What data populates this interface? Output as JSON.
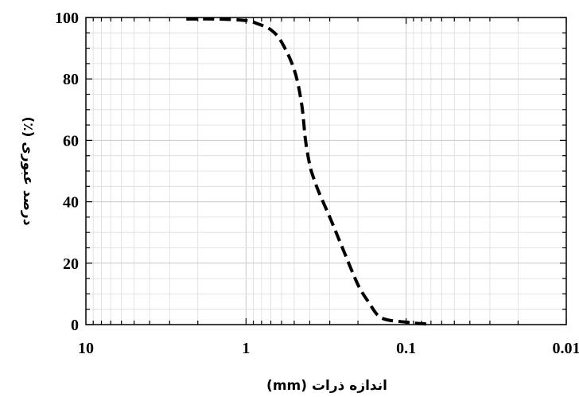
{
  "chart_data": {
    "type": "line",
    "xlabel": "اندازه ذرات (mm)",
    "ylabel": "درصد عبوری (٪)",
    "x_scale": "log",
    "x_reversed": true,
    "xlim": [
      10,
      0.01
    ],
    "ylim": [
      0,
      100
    ],
    "x_ticks": [
      10,
      1,
      0.1,
      0.01
    ],
    "x_tick_labels": [
      "10",
      "1",
      "0.1",
      "0.01"
    ],
    "y_ticks": [
      0,
      20,
      40,
      60,
      80,
      100
    ],
    "y_tick_labels": [
      "0",
      "20",
      "40",
      "60",
      "80",
      "100"
    ],
    "grid": true,
    "series": [
      {
        "line_style": "dashed",
        "color": "#000000",
        "x": [
          2.36,
          1.5,
          1.0,
          0.85,
          0.7,
          0.6,
          0.5,
          0.45,
          0.425,
          0.4,
          0.38,
          0.35,
          0.3,
          0.25,
          0.2,
          0.17,
          0.15,
          0.13,
          0.1,
          0.09,
          0.075
        ],
        "y": [
          99.5,
          99.5,
          99,
          98,
          96,
          92,
          83,
          72,
          60,
          52,
          48,
          43,
          35,
          25,
          13,
          7,
          3,
          1.5,
          0.8,
          0.5,
          0.2
        ]
      }
    ]
  }
}
